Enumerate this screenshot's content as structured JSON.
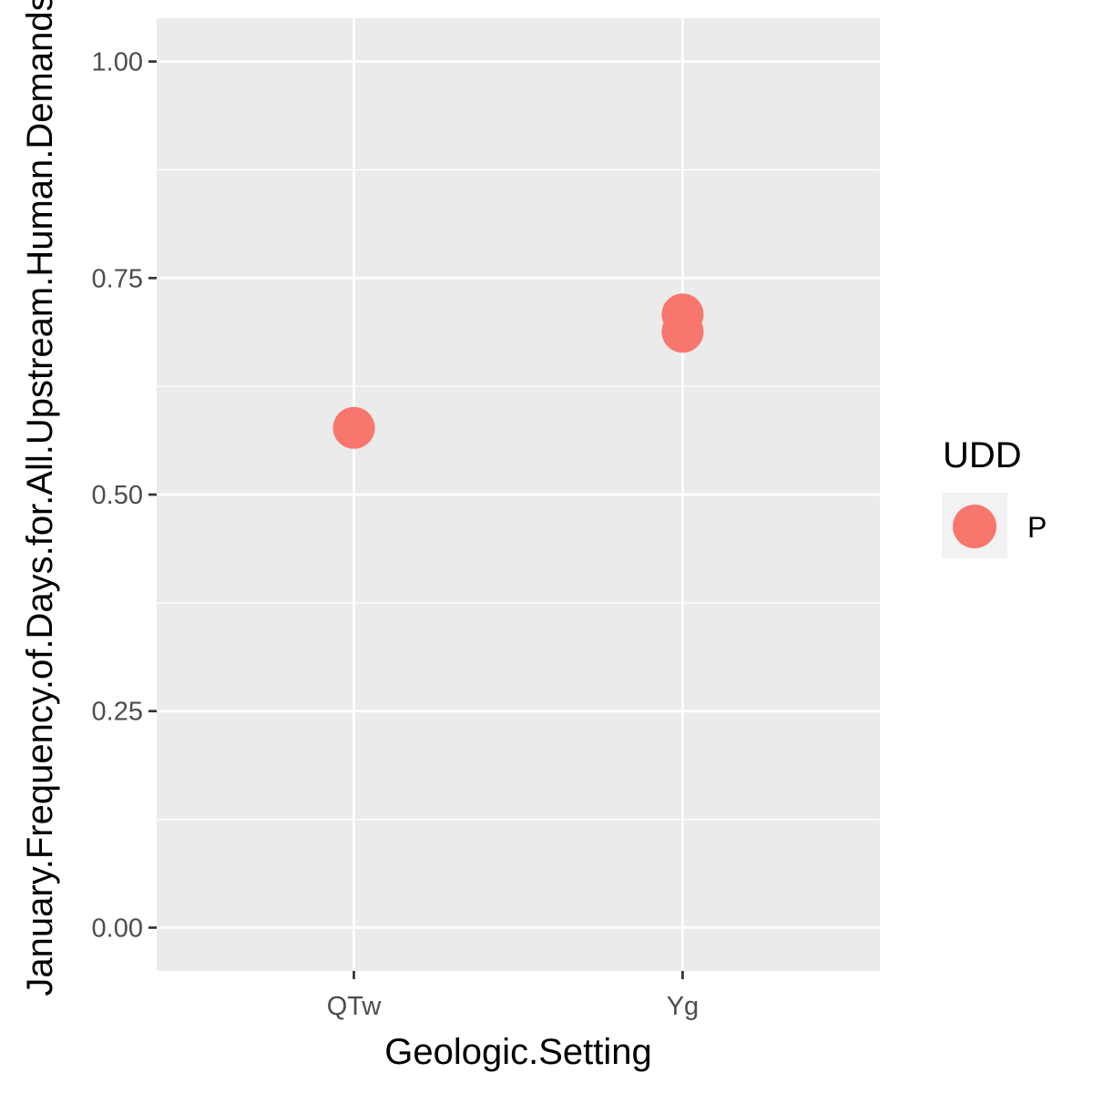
{
  "chart_data": {
    "type": "scatter",
    "xlabel": "Geologic.Setting",
    "ylabel": "January.Frequency.of.Days.for.All.Upstream.Human.Demands",
    "categories": [
      "QTw",
      "Yg"
    ],
    "ylim": [
      -0.05,
      1.05
    ],
    "y_ticks": [
      0.0,
      0.25,
      0.5,
      0.75,
      1.0
    ],
    "y_tick_labels": [
      "0.00",
      "0.25",
      "0.50",
      "0.75",
      "1.00"
    ],
    "grid": true,
    "legend": {
      "title": "UDD",
      "placement": "right",
      "entries": [
        {
          "label": "P",
          "color": "#F8766D"
        }
      ]
    },
    "series": [
      {
        "name": "P",
        "color": "#F8766D",
        "points": [
          {
            "x": "QTw",
            "y": 0.577
          },
          {
            "x": "Yg",
            "y": 0.708
          },
          {
            "x": "Yg",
            "y": 0.688
          }
        ]
      }
    ]
  },
  "colors": {
    "panel": "#EBEBEB",
    "grid": "#FFFFFF",
    "point": "#F8766D",
    "legend_key_bg": "#F2F2F2"
  }
}
